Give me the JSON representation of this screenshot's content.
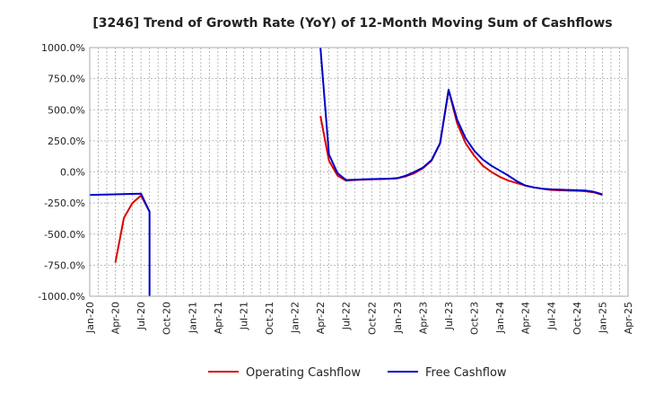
{
  "chart_data": {
    "type": "line",
    "title": "[3246]  Trend of Growth Rate (YoY) of 12-Month Moving Sum of Cashflows",
    "xlabel": "",
    "ylabel": "",
    "ylim": [
      -1000,
      1000
    ],
    "yticks": [
      1000,
      750,
      500,
      250,
      0,
      -250,
      -500,
      -750,
      -1000
    ],
    "ytick_labels": [
      "1000.0%",
      "750.0%",
      "500.0%",
      "250.0%",
      "0.0%",
      "-250.0%",
      "-500.0%",
      "-750.0%",
      "-1000.0%"
    ],
    "x_categories": [
      "Jan-20",
      "Apr-20",
      "Jul-20",
      "Oct-20",
      "Jan-21",
      "Apr-21",
      "Jul-21",
      "Oct-21",
      "Jan-22",
      "Apr-22",
      "Jul-22",
      "Oct-22",
      "Jan-23",
      "Apr-23",
      "Jul-23",
      "Oct-23",
      "Jan-24",
      "Apr-24",
      "Jul-24",
      "Oct-24",
      "Jan-25",
      "Apr-25"
    ],
    "grid": true,
    "legend_position": "bottom",
    "series": [
      {
        "name": "Operating Cashflow",
        "color": "#dd0000",
        "segments": [
          [
            {
              "x": "Apr-20",
              "y": -730
            },
            {
              "x": "May-20",
              "y": -370
            },
            {
              "x": "Jun-20",
              "y": -250
            },
            {
              "x": "Jul-20",
              "y": -190
            },
            {
              "x": "Aug-20",
              "y": -320
            }
          ],
          [
            {
              "x": "Apr-22",
              "y": 450
            },
            {
              "x": "May-22",
              "y": 90
            },
            {
              "x": "Jun-22",
              "y": -30
            },
            {
              "x": "Jul-22",
              "y": -70
            },
            {
              "x": "Aug-22",
              "y": -65
            },
            {
              "x": "Sep-22",
              "y": -62
            },
            {
              "x": "Oct-22",
              "y": -60
            },
            {
              "x": "Nov-22",
              "y": -58
            },
            {
              "x": "Dec-22",
              "y": -55
            },
            {
              "x": "Jan-23",
              "y": -52
            },
            {
              "x": "Feb-23",
              "y": -35
            },
            {
              "x": "Mar-23",
              "y": -10
            },
            {
              "x": "Apr-23",
              "y": 30
            },
            {
              "x": "May-23",
              "y": 90
            },
            {
              "x": "Jun-23",
              "y": 230
            },
            {
              "x": "Jul-23",
              "y": 660
            },
            {
              "x": "Aug-23",
              "y": 390
            },
            {
              "x": "Sep-23",
              "y": 230
            },
            {
              "x": "Oct-23",
              "y": 130
            },
            {
              "x": "Nov-23",
              "y": 50
            },
            {
              "x": "Dec-23",
              "y": 0
            },
            {
              "x": "Jan-24",
              "y": -40
            },
            {
              "x": "Feb-24",
              "y": -70
            },
            {
              "x": "Mar-24",
              "y": -90
            },
            {
              "x": "Apr-24",
              "y": -110
            },
            {
              "x": "May-24",
              "y": -125
            },
            {
              "x": "Jun-24",
              "y": -135
            },
            {
              "x": "Jul-24",
              "y": -145
            },
            {
              "x": "Aug-24",
              "y": -148
            },
            {
              "x": "Sep-24",
              "y": -150
            },
            {
              "x": "Oct-24",
              "y": -152
            },
            {
              "x": "Nov-24",
              "y": -155
            },
            {
              "x": "Dec-24",
              "y": -165
            },
            {
              "x": "Jan-25",
              "y": -185
            }
          ]
        ]
      },
      {
        "name": "Free Cashflow",
        "color": "#0000cc",
        "segments": [
          [
            {
              "x": "Jan-20",
              "y": -185
            },
            {
              "x": "Jul-20",
              "y": -175
            },
            {
              "x": "Aug-20",
              "y": -320
            },
            {
              "x": "Aug-20",
              "y": -1000
            }
          ],
          [
            {
              "x": "Apr-22",
              "y": 1000
            },
            {
              "x": "May-22",
              "y": 140
            },
            {
              "x": "Jun-22",
              "y": -10
            },
            {
              "x": "Jul-22",
              "y": -65
            },
            {
              "x": "Aug-22",
              "y": -63
            },
            {
              "x": "Sep-22",
              "y": -60
            },
            {
              "x": "Oct-22",
              "y": -58
            },
            {
              "x": "Nov-22",
              "y": -56
            },
            {
              "x": "Dec-22",
              "y": -55
            },
            {
              "x": "Jan-23",
              "y": -50
            },
            {
              "x": "Feb-23",
              "y": -30
            },
            {
              "x": "Mar-23",
              "y": 0
            },
            {
              "x": "Apr-23",
              "y": 35
            },
            {
              "x": "May-23",
              "y": 95
            },
            {
              "x": "Jun-23",
              "y": 230
            },
            {
              "x": "Jul-23",
              "y": 660
            },
            {
              "x": "Aug-23",
              "y": 420
            },
            {
              "x": "Sep-23",
              "y": 270
            },
            {
              "x": "Oct-23",
              "y": 170
            },
            {
              "x": "Nov-23",
              "y": 100
            },
            {
              "x": "Dec-23",
              "y": 50
            },
            {
              "x": "Jan-24",
              "y": 10
            },
            {
              "x": "Feb-24",
              "y": -30
            },
            {
              "x": "Mar-24",
              "y": -75
            },
            {
              "x": "Apr-24",
              "y": -110
            },
            {
              "x": "May-24",
              "y": -125
            },
            {
              "x": "Jun-24",
              "y": -135
            },
            {
              "x": "Jul-24",
              "y": -140
            },
            {
              "x": "Aug-24",
              "y": -143
            },
            {
              "x": "Sep-24",
              "y": -145
            },
            {
              "x": "Oct-24",
              "y": -147
            },
            {
              "x": "Nov-24",
              "y": -150
            },
            {
              "x": "Dec-24",
              "y": -160
            },
            {
              "x": "Jan-25",
              "y": -180
            }
          ]
        ]
      }
    ]
  }
}
